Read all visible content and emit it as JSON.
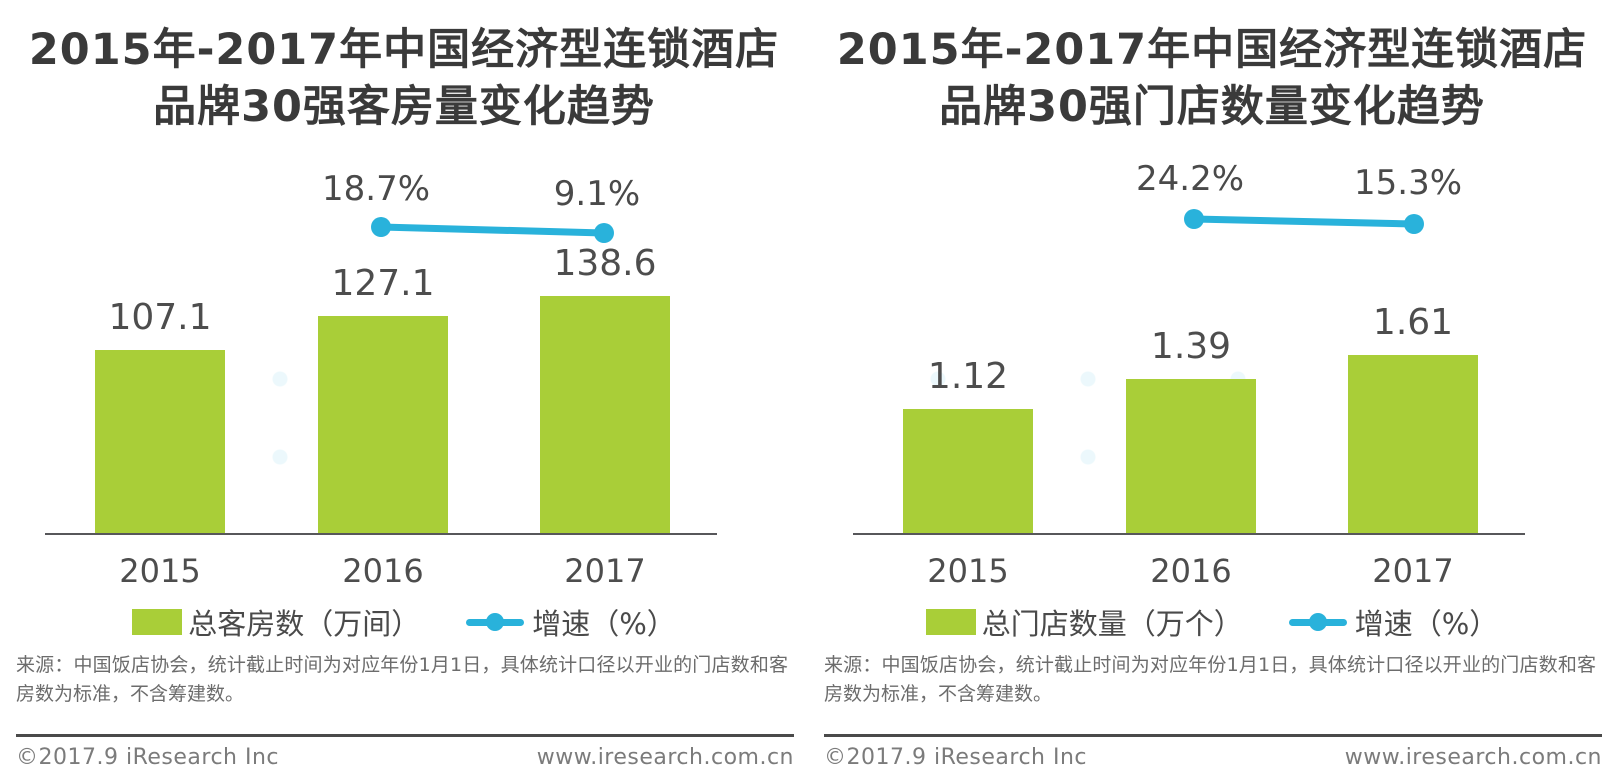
{
  "colors": {
    "bar_green": "#a9ce38",
    "line_blue": "#29b2db",
    "title_text": "#3a3a3a",
    "label_text": "#4d4d4d",
    "source_text": "#6c6c6c",
    "footer_text": "#7b7b7b"
  },
  "source_note": "来源：中国饭店协会，统计截止时间为对应年份1月1日，具体统计口径以开业的门店数和客房数为标准，不含筹建数。",
  "footer": {
    "copyright": "©2017.9 iResearch Inc",
    "website": "www.iresearch.com.cn"
  },
  "chart_data": [
    {
      "type": "bar",
      "title": "2015年-2017年中国经济型连锁酒店品牌30强客房量变化趋势",
      "categories": [
        "2015",
        "2016",
        "2017"
      ],
      "series": [
        {
          "name": "总客房数（万间）",
          "type": "bar",
          "values": [
            107.1,
            127.1,
            138.6
          ]
        },
        {
          "name": "增速（%）",
          "type": "line",
          "values": [
            null,
            18.7,
            9.1
          ]
        }
      ],
      "growth_labels": [
        "18.7%",
        "9.1%"
      ],
      "legend_position": "bottom",
      "grid": false,
      "y_axis_visible": false
    },
    {
      "type": "bar",
      "title": "2015年-2017年中国经济型连锁酒店品牌30强门店数量变化趋势",
      "categories": [
        "2015",
        "2016",
        "2017"
      ],
      "series": [
        {
          "name": "总门店数量（万个）",
          "type": "bar",
          "values": [
            1.12,
            1.39,
            1.61
          ]
        },
        {
          "name": "增速（%）",
          "type": "line",
          "values": [
            null,
            24.2,
            15.3
          ]
        }
      ],
      "growth_labels": [
        "24.2%",
        "15.3%"
      ],
      "legend_position": "bottom",
      "grid": false,
      "y_axis_visible": false
    }
  ]
}
